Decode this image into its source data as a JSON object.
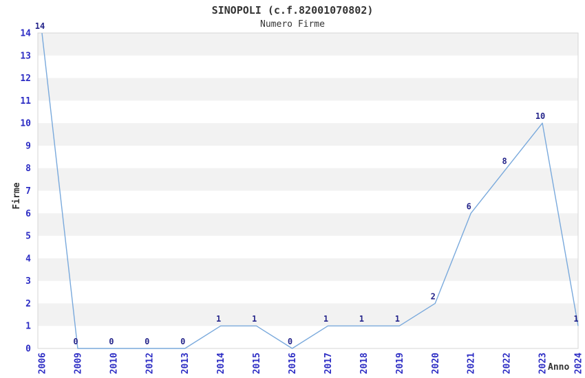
{
  "header": {
    "title": "SINOPOLI (c.f.82001070802)",
    "subtitle": "Numero Firme"
  },
  "chart_data": {
    "type": "line",
    "title": "SINOPOLI (c.f.82001070802)",
    "subtitle": "Numero Firme",
    "xlabel": "Anno",
    "ylabel": "Firme",
    "categories": [
      "2006",
      "2009",
      "2010",
      "2012",
      "2013",
      "2014",
      "2015",
      "2016",
      "2017",
      "2018",
      "2019",
      "2020",
      "2021",
      "2022",
      "2023",
      "2024"
    ],
    "values": [
      14,
      0,
      0,
      0,
      0,
      1,
      1,
      0,
      1,
      1,
      1,
      2,
      6,
      8,
      10,
      1
    ],
    "ylim": [
      0,
      14
    ],
    "ytick_step": 1,
    "grid": "horizontal-alternating-bands",
    "legend": "none",
    "data_labels_shown": true,
    "colors": {
      "line": "#79a9dc",
      "tick_labels": "#2d2dc4",
      "data_labels": "#24248a",
      "band_gray": "#f2f2f2",
      "plot_border": "#d6d6d6",
      "titles": "#333333",
      "background": "#ffffff"
    }
  }
}
